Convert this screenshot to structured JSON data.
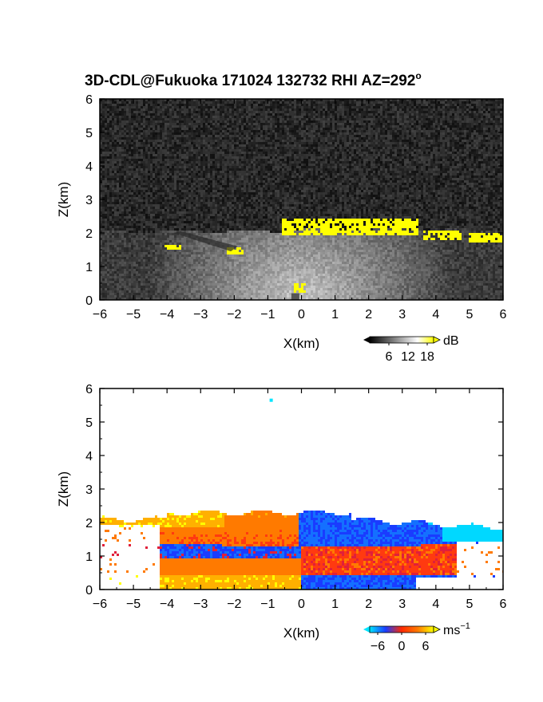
{
  "title_main": "3D-CDL@Fukuoka 171024 132732 RHI AZ=292",
  "title_sup": "o",
  "chart_data": [
    {
      "type": "heatmap",
      "quantity": "reflectivity (SNR)",
      "xlabel": "X(km)",
      "ylabel": "Z(km)",
      "xlim": [
        -6,
        6
      ],
      "ylim": [
        0,
        6
      ],
      "xticks": [
        -6,
        -5,
        -4,
        -3,
        -2,
        -1,
        0,
        1,
        2,
        3,
        4,
        5,
        6
      ],
      "yticks": [
        0,
        1,
        2,
        3,
        4,
        5,
        6
      ],
      "colorbar": {
        "unit": "dB",
        "ticks": [
          6,
          12,
          18
        ],
        "range": [
          0,
          20
        ],
        "colors": [
          "#000000",
          "#ffffff",
          "#ffff00"
        ]
      },
      "features": [
        {
          "label": "bright layer top",
          "x": [
            -0.6,
            3.5
          ],
          "z": [
            1.9,
            2.4
          ],
          "value_db": 20
        },
        {
          "label": "bright patch right",
          "x": [
            3.6,
            4.8
          ],
          "z": [
            1.8,
            2.1
          ],
          "value_db": 20
        },
        {
          "label": "bright patch far right",
          "x": [
            5.0,
            6.0
          ],
          "z": [
            1.7,
            2.0
          ],
          "value_db": 20
        },
        {
          "label": "bright streak left",
          "x": [
            -4.1,
            -3.6
          ],
          "z": [
            1.5,
            1.65
          ],
          "value_db": 20
        },
        {
          "label": "bright streak",
          "x": [
            -2.2,
            -1.7
          ],
          "z": [
            1.35,
            1.6
          ],
          "value_db": 20
        },
        {
          "label": "near-surface spot",
          "x": [
            -0.2,
            0.1
          ],
          "z": [
            0.2,
            0.5
          ],
          "value_db": 20
        },
        {
          "label": "boundary layer",
          "x": [
            -6,
            6
          ],
          "z": [
            0,
            2.1
          ],
          "value_db": 10
        },
        {
          "label": "noise above",
          "x": [
            -6,
            6
          ],
          "z": [
            2.1,
            6
          ],
          "value_db": 2
        }
      ]
    },
    {
      "type": "heatmap",
      "quantity": "radial velocity",
      "xlabel": "X(km)",
      "ylabel": "Z(km)",
      "xlim": [
        -6,
        6
      ],
      "ylim": [
        0,
        6
      ],
      "xticks": [
        -6,
        -5,
        -4,
        -3,
        -2,
        -1,
        0,
        1,
        2,
        3,
        4,
        5,
        6
      ],
      "yticks": [
        0,
        1,
        2,
        3,
        4,
        5,
        6
      ],
      "colorbar": {
        "unit": "ms",
        "unit_sup": "−1",
        "ticks": [
          "−6",
          "0",
          "6"
        ],
        "range": [
          -8,
          8
        ],
        "colors": [
          "#00e5ff",
          "#1a3cff",
          "#ff2a00",
          "#ff7a00",
          "#ffff00"
        ]
      },
      "features": [
        {
          "label": "outbound upper-left",
          "x": [
            -4,
            -0.3
          ],
          "z": [
            1.3,
            2.3
          ],
          "velocity": 3
        },
        {
          "label": "outbound lower-left",
          "x": [
            -4.2,
            0
          ],
          "z": [
            0,
            0.9
          ],
          "velocity": 5
        },
        {
          "label": "inbound upper-right",
          "x": [
            -0.1,
            6
          ],
          "z": [
            1.3,
            2.4
          ],
          "velocity": -4
        },
        {
          "label": "outbound mid-right",
          "x": [
            0.3,
            4.5
          ],
          "z": [
            0.4,
            1.2
          ],
          "velocity": 2
        },
        {
          "label": "isolated point",
          "x": [
            -0.9,
            -0.9
          ],
          "z": [
            5.65,
            5.65
          ],
          "velocity": -7
        }
      ]
    }
  ],
  "colors": {
    "yellow": "#ffff00",
    "blue": "#1a3cff",
    "red": "#ff2a00",
    "cyan": "#00e5ff"
  }
}
